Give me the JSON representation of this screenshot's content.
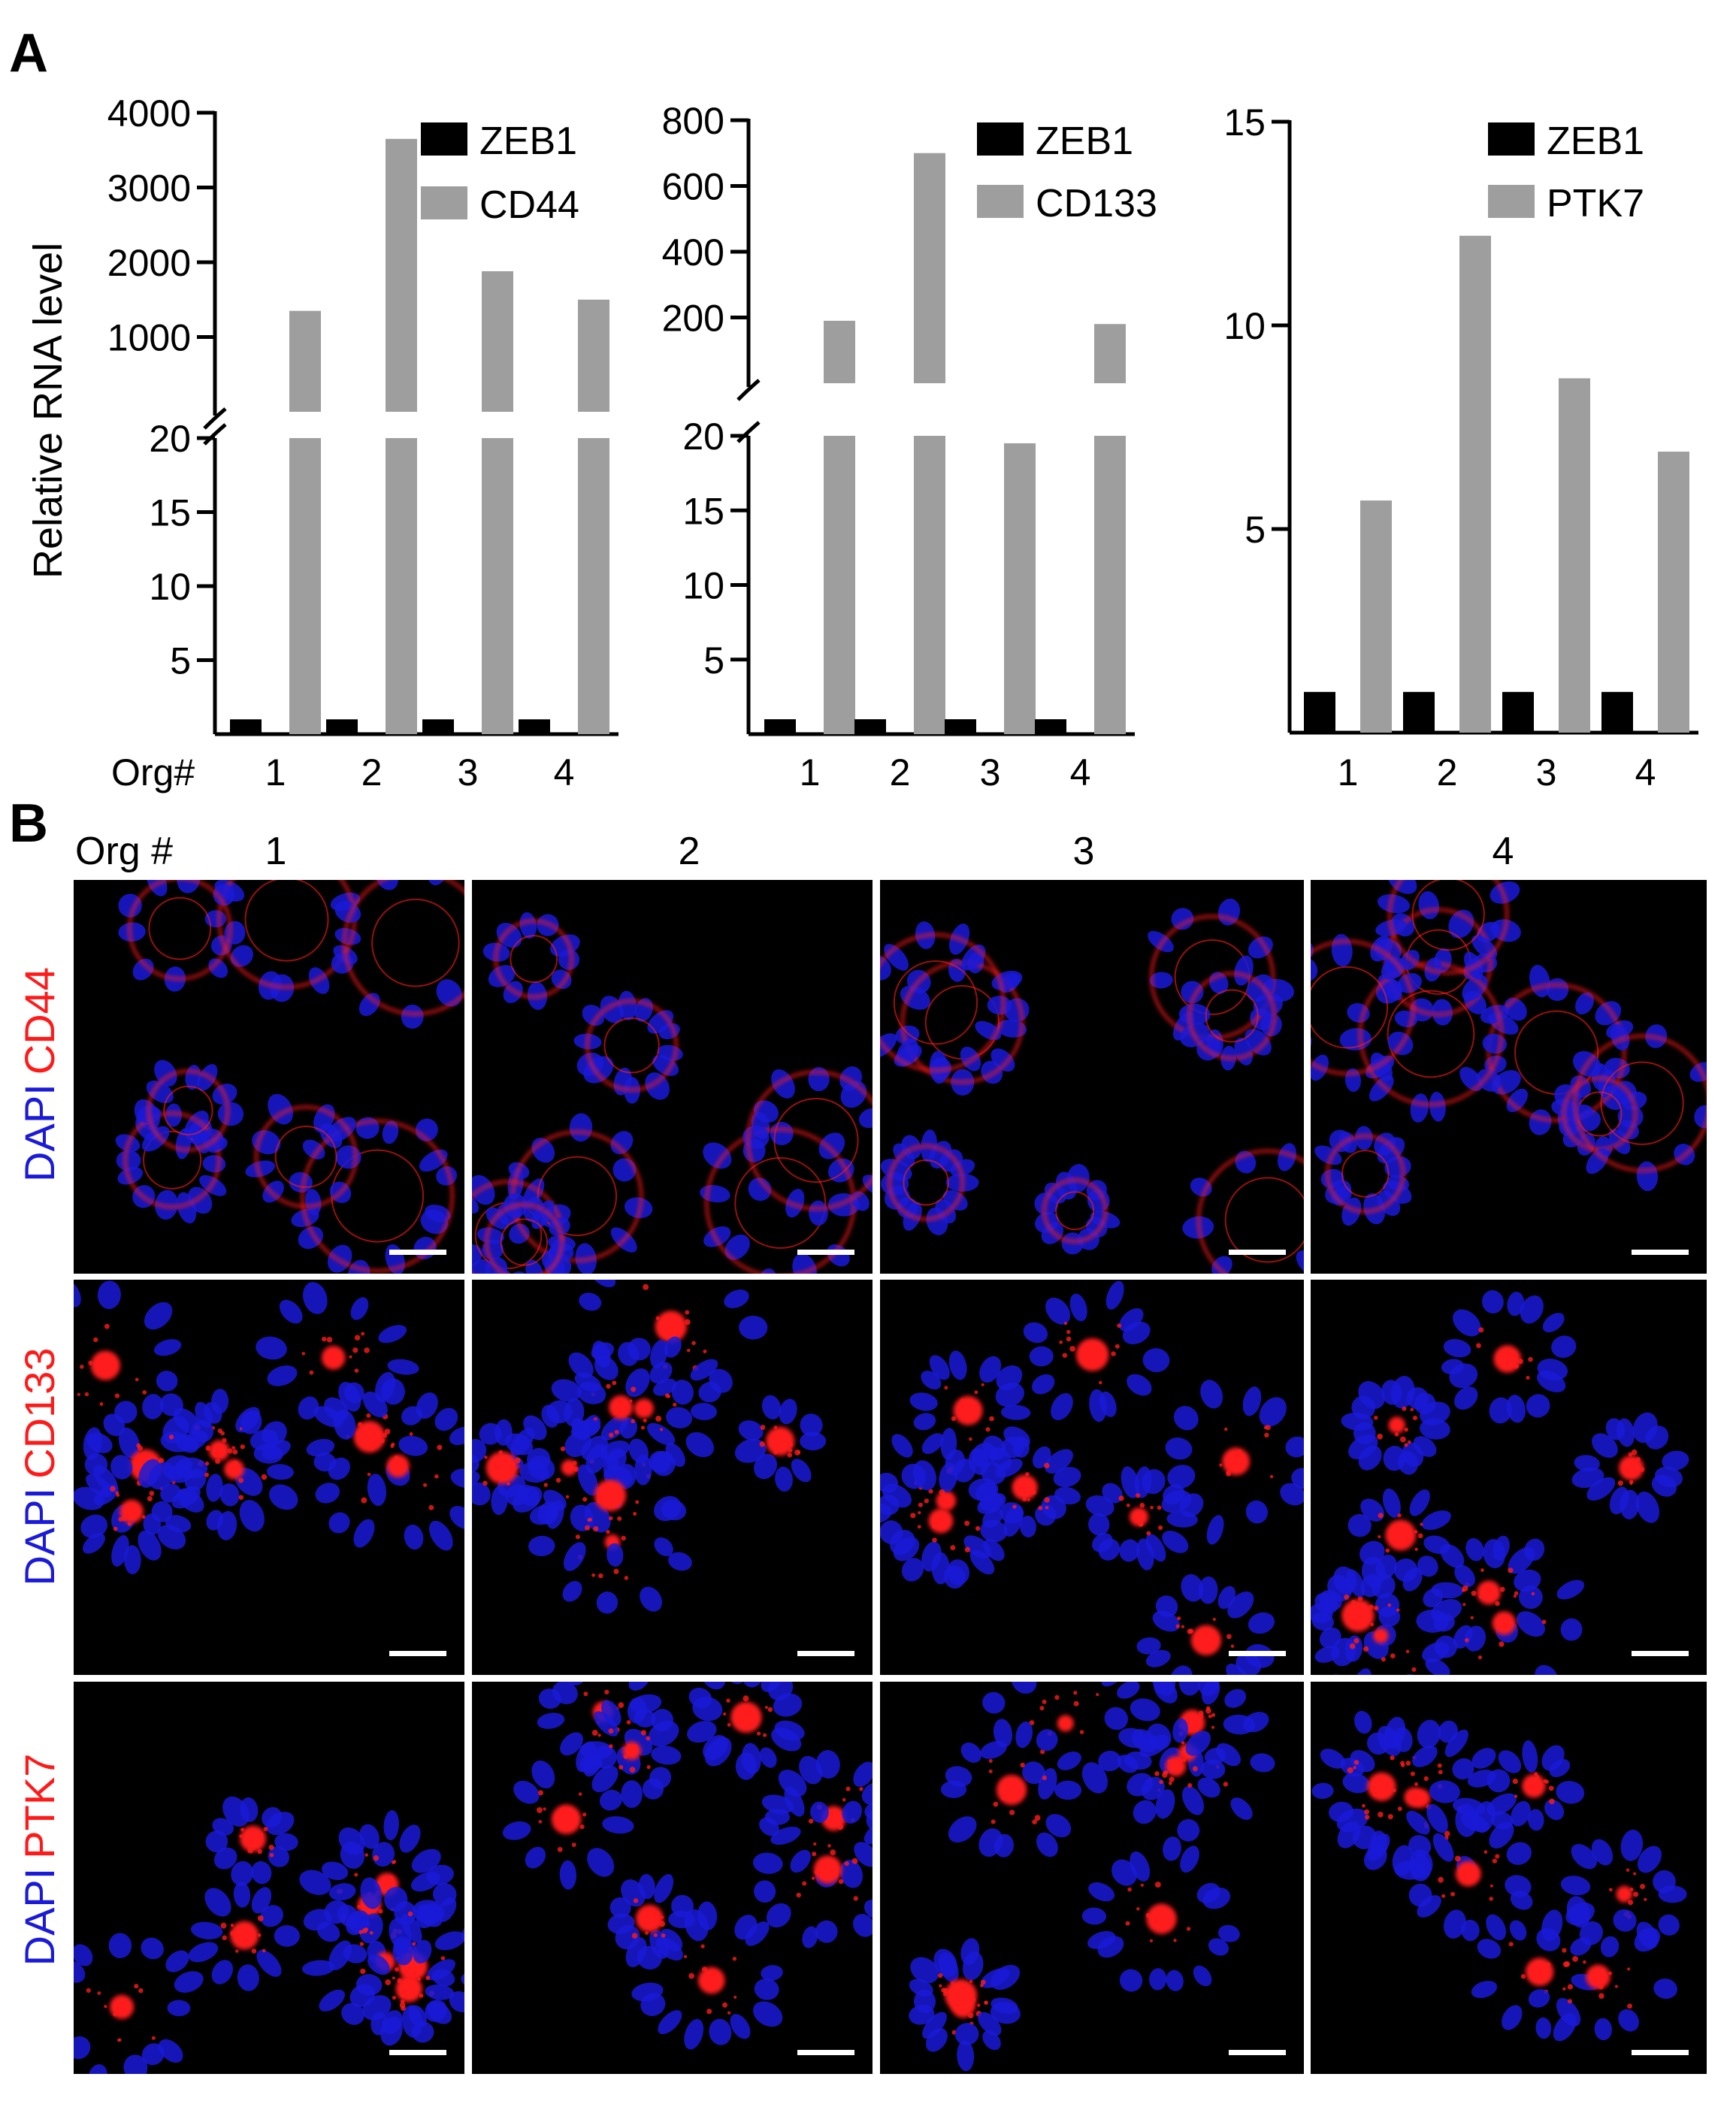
{
  "panel_a": {
    "letter": "A"
  },
  "panel_b": {
    "letter": "B",
    "column_header_label": "Org #",
    "columns": [
      "1",
      "2",
      "3",
      "4"
    ],
    "rows": [
      {
        "stain": "DAPI",
        "marker": "CD44"
      },
      {
        "stain": "DAPI",
        "marker": "CD133"
      },
      {
        "stain": "DAPI",
        "marker": "PTK7"
      }
    ],
    "colors": {
      "background": "#000000",
      "dapi": "#1a1ad8",
      "marker": "#ff1a1a",
      "scale_bar": "#ffffff"
    }
  },
  "chart_data": [
    {
      "type": "bar",
      "ylabel": "Relative RNA level",
      "x_prefix": "Org#",
      "categories": [
        "1",
        "2",
        "3",
        "4"
      ],
      "broken_axis": true,
      "lower_ylim": [
        0,
        20
      ],
      "upper_ylim": [
        0,
        4000
      ],
      "lower_ticks": [
        "5",
        "10",
        "15",
        "20"
      ],
      "upper_ticks": [
        "1000",
        "2000",
        "3000",
        "4000"
      ],
      "series": [
        {
          "name": "ZEB1",
          "color": "#000000",
          "values": [
            1,
            1,
            1,
            1
          ]
        },
        {
          "name": "CD44",
          "color": "#9e9e9e",
          "values": [
            1350,
            3650,
            1880,
            1500
          ]
        }
      ],
      "legend": "top-right"
    },
    {
      "type": "bar",
      "categories": [
        "1",
        "2",
        "3",
        "4"
      ],
      "broken_axis": true,
      "lower_ylim": [
        0,
        20
      ],
      "upper_ylim": [
        0,
        800
      ],
      "lower_ticks": [
        "5",
        "10",
        "15",
        "20"
      ],
      "upper_ticks": [
        "200",
        "400",
        "600",
        "800"
      ],
      "series": [
        {
          "name": "ZEB1",
          "color": "#000000",
          "values": [
            1,
            1,
            1,
            1
          ]
        },
        {
          "name": "CD133",
          "color": "#9e9e9e",
          "values": [
            190,
            700,
            19.5,
            180
          ]
        }
      ],
      "legend": "top-right"
    },
    {
      "type": "bar",
      "categories": [
        "1",
        "2",
        "3",
        "4"
      ],
      "broken_axis": false,
      "ylim": [
        0,
        15
      ],
      "ticks": [
        "5",
        "10",
        "15"
      ],
      "series": [
        {
          "name": "ZEB1",
          "color": "#000000",
          "values": [
            1,
            1,
            1,
            1
          ]
        },
        {
          "name": "PTK7",
          "color": "#9e9e9e",
          "values": [
            5.7,
            12.2,
            8.7,
            6.9
          ]
        }
      ],
      "legend": "top-right"
    }
  ]
}
